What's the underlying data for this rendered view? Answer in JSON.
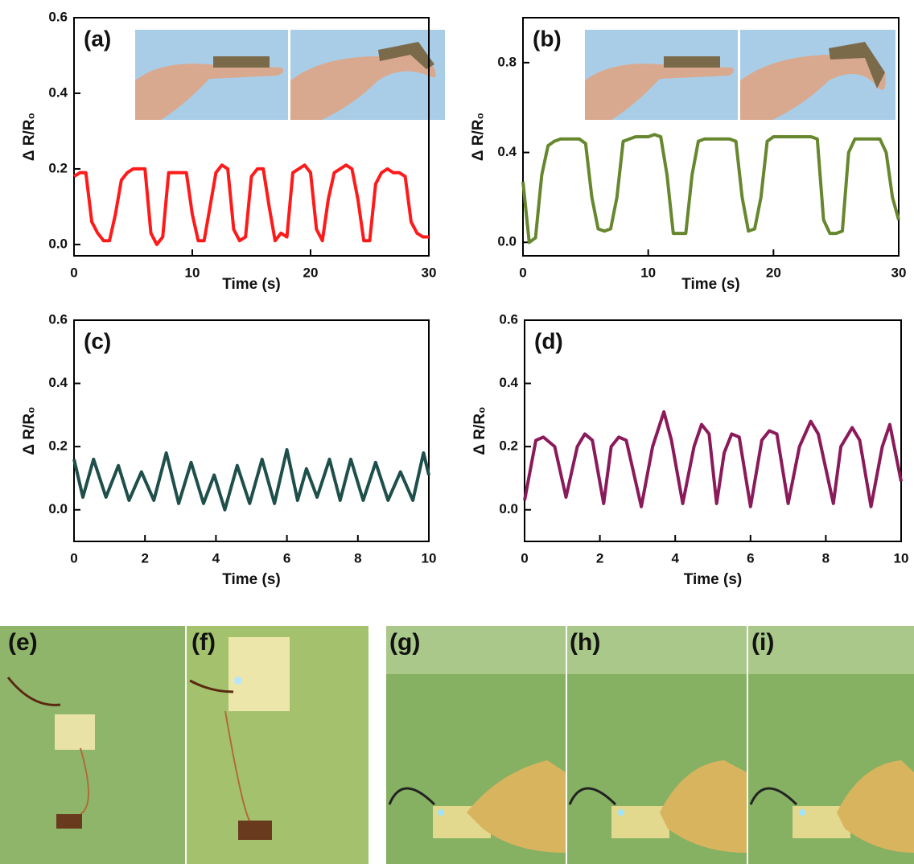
{
  "chart_data": [
    {
      "type": "line",
      "title": "(a)",
      "x_label": "Time (s)",
      "y_label": "Δ R/R₀",
      "color": "#ff1a1a",
      "xlim": [
        0,
        30
      ],
      "xticks": [
        0,
        10,
        20,
        30
      ],
      "ylim": [
        -0.03,
        0.6
      ],
      "yticks": [
        {
          "value": 0,
          "label": "0.0"
        },
        {
          "value": 0.2,
          "label": "0.2"
        },
        {
          "value": 0.4,
          "label": "0.4"
        },
        {
          "value": 0.6,
          "label": "0.6"
        }
      ],
      "x": [
        0,
        0.5,
        1,
        1.5,
        2,
        2.5,
        3,
        3.5,
        4,
        4.5,
        5,
        5.5,
        6,
        6.5,
        7,
        7.5,
        8,
        8.5,
        9,
        9.5,
        10,
        10.5,
        11,
        11.5,
        12,
        12.5,
        13,
        13.5,
        14,
        14.5,
        15,
        15.5,
        16,
        16.5,
        17,
        17.5,
        18,
        18.5,
        19,
        19.5,
        20,
        20.5,
        21,
        21.5,
        22,
        22.5,
        23,
        23.5,
        24,
        24.5,
        25,
        25.5,
        26,
        26.5,
        27,
        27.5,
        28,
        28.5,
        29,
        29.5,
        30
      ],
      "values": [
        0.18,
        0.19,
        0.19,
        0.06,
        0.03,
        0.01,
        0.01,
        0.08,
        0.17,
        0.19,
        0.2,
        0.2,
        0.2,
        0.03,
        0.0,
        0.02,
        0.19,
        0.19,
        0.19,
        0.19,
        0.08,
        0.01,
        0.01,
        0.1,
        0.19,
        0.21,
        0.2,
        0.04,
        0.01,
        0.02,
        0.18,
        0.2,
        0.2,
        0.1,
        0.01,
        0.03,
        0.02,
        0.19,
        0.2,
        0.21,
        0.19,
        0.04,
        0.01,
        0.12,
        0.19,
        0.2,
        0.21,
        0.2,
        0.12,
        0.01,
        0.01,
        0.16,
        0.19,
        0.2,
        0.19,
        0.19,
        0.18,
        0.06,
        0.03,
        0.02,
        0.02
      ]
    },
    {
      "type": "line",
      "title": "(b)",
      "x_label": "Time (s)",
      "y_label": "Δ R/R₀",
      "color": "#66872e",
      "xlim": [
        0,
        30
      ],
      "xticks": [
        0,
        10,
        20,
        30
      ],
      "ylim": [
        -0.06,
        1.0
      ],
      "yticks": [
        {
          "value": 0,
          "label": "0.0"
        },
        {
          "value": 0.4,
          "label": "0.4"
        },
        {
          "value": 0.8,
          "label": "0.8"
        }
      ],
      "x": [
        0,
        0.5,
        1,
        1.5,
        2,
        2.5,
        3,
        3.5,
        4,
        4.5,
        5,
        5.5,
        6,
        6.5,
        7,
        7.5,
        8,
        8.5,
        9,
        9.5,
        10,
        10.5,
        11,
        11.5,
        12,
        12.5,
        13,
        13.5,
        14,
        14.5,
        15,
        15.5,
        16,
        16.5,
        17,
        17.5,
        18,
        18.5,
        19,
        19.5,
        20,
        20.5,
        21,
        21.5,
        22,
        22.5,
        23,
        23.5,
        24,
        24.5,
        25,
        25.5,
        26,
        26.5,
        27,
        27.5,
        28,
        28.5,
        29,
        29.5,
        30
      ],
      "values": [
        0.27,
        0.0,
        0.02,
        0.3,
        0.43,
        0.45,
        0.46,
        0.46,
        0.46,
        0.46,
        0.44,
        0.2,
        0.06,
        0.05,
        0.06,
        0.2,
        0.45,
        0.46,
        0.47,
        0.47,
        0.47,
        0.48,
        0.47,
        0.3,
        0.04,
        0.04,
        0.04,
        0.3,
        0.45,
        0.46,
        0.46,
        0.46,
        0.46,
        0.46,
        0.45,
        0.2,
        0.05,
        0.06,
        0.2,
        0.45,
        0.47,
        0.47,
        0.47,
        0.47,
        0.47,
        0.47,
        0.47,
        0.46,
        0.1,
        0.04,
        0.04,
        0.05,
        0.4,
        0.46,
        0.46,
        0.46,
        0.46,
        0.46,
        0.4,
        0.2,
        0.1
      ]
    },
    {
      "type": "line",
      "title": "(c)",
      "x_label": "Time (s)",
      "y_label": "Δ R/R₀",
      "color": "#1e4f4a",
      "xlim": [
        0,
        10
      ],
      "xticks": [
        0,
        2,
        4,
        6,
        8,
        10
      ],
      "ylim": [
        -0.1,
        0.6
      ],
      "yticks": [
        {
          "value": 0,
          "label": "0.0"
        },
        {
          "value": 0.2,
          "label": "0.2"
        },
        {
          "value": 0.4,
          "label": "0.4"
        },
        {
          "value": 0.6,
          "label": "0.6"
        }
      ],
      "x": [
        0,
        0.25,
        0.55,
        0.9,
        1.25,
        1.55,
        1.9,
        2.25,
        2.6,
        2.95,
        3.3,
        3.65,
        3.95,
        4.25,
        4.6,
        4.95,
        5.3,
        5.65,
        6.0,
        6.3,
        6.55,
        6.85,
        7.2,
        7.5,
        7.8,
        8.15,
        8.5,
        8.85,
        9.2,
        9.55,
        9.85,
        10
      ],
      "values": [
        0.16,
        0.04,
        0.16,
        0.04,
        0.14,
        0.03,
        0.12,
        0.03,
        0.18,
        0.02,
        0.15,
        0.02,
        0.11,
        0.0,
        0.14,
        0.02,
        0.16,
        0.02,
        0.19,
        0.03,
        0.13,
        0.04,
        0.16,
        0.03,
        0.16,
        0.03,
        0.15,
        0.03,
        0.12,
        0.03,
        0.18,
        0.11
      ]
    },
    {
      "type": "line",
      "title": "(d)",
      "x_label": "Time (s)",
      "y_label": "Δ R/R₀",
      "color": "#8b1a5a",
      "xlim": [
        0,
        10
      ],
      "xticks": [
        0,
        2,
        4,
        6,
        8,
        10
      ],
      "ylim": [
        -0.1,
        0.6
      ],
      "yticks": [
        {
          "value": 0,
          "label": "0.0"
        },
        {
          "value": 0.2,
          "label": "0.2"
        },
        {
          "value": 0.4,
          "label": "0.4"
        },
        {
          "value": 0.6,
          "label": "0.6"
        }
      ],
      "x": [
        0,
        0.3,
        0.5,
        0.8,
        1.1,
        1.4,
        1.6,
        1.8,
        2.1,
        2.3,
        2.5,
        2.7,
        3.1,
        3.4,
        3.7,
        3.9,
        4.2,
        4.5,
        4.7,
        4.9,
        5.1,
        5.3,
        5.5,
        5.7,
        6.0,
        6.3,
        6.5,
        6.7,
        7.0,
        7.3,
        7.6,
        7.8,
        8.2,
        8.4,
        8.7,
        8.9,
        9.2,
        9.5,
        9.7,
        10
      ],
      "values": [
        0.03,
        0.22,
        0.23,
        0.2,
        0.04,
        0.2,
        0.24,
        0.22,
        0.02,
        0.2,
        0.23,
        0.22,
        0.01,
        0.2,
        0.31,
        0.22,
        0.02,
        0.2,
        0.27,
        0.24,
        0.02,
        0.18,
        0.24,
        0.23,
        0.01,
        0.22,
        0.25,
        0.24,
        0.02,
        0.2,
        0.28,
        0.24,
        0.02,
        0.2,
        0.26,
        0.22,
        0.01,
        0.2,
        0.27,
        0.09
      ]
    }
  ],
  "photo_labels": [
    "(e)",
    "(f)",
    "(g)",
    "(h)",
    "(i)"
  ]
}
